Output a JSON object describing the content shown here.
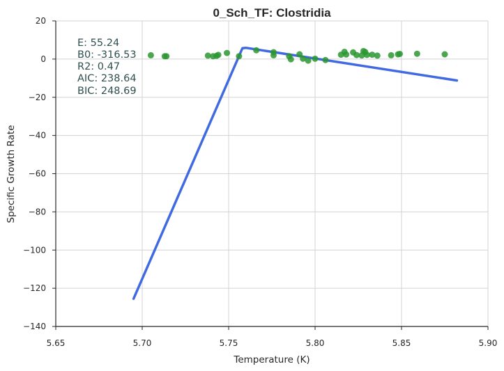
{
  "chart_data": {
    "type": "scatter",
    "title": "0_Sch_TF: Clostridia",
    "xlabel": "Temperature (K)",
    "ylabel": "Specific Growth Rate",
    "xlim": [
      5.65,
      5.9
    ],
    "ylim": [
      -140,
      20
    ],
    "xticks": [
      5.65,
      5.7,
      5.75,
      5.8,
      5.85,
      5.9
    ],
    "xtick_labels": [
      "5.65",
      "5.70",
      "5.75",
      "5.80",
      "5.85",
      "5.90"
    ],
    "yticks": [
      20,
      0,
      -20,
      -40,
      -60,
      -80,
      -100,
      -120,
      -140
    ],
    "ytick_labels": [
      "20",
      "0",
      "−20",
      "−40",
      "−60",
      "−80",
      "−100",
      "−120",
      "−140"
    ],
    "grid": true,
    "colors": {
      "points": "#2a9630",
      "fit": "#4169e1",
      "annotation": "#2f4f4f",
      "axis": "#262626",
      "grid": "#d3d3d3"
    },
    "series": [
      {
        "name": "observed",
        "kind": "scatter",
        "x": [
          5.705,
          5.713,
          5.714,
          5.738,
          5.741,
          5.743,
          5.744,
          5.749,
          5.756,
          5.766,
          5.776,
          5.776,
          5.785,
          5.786,
          5.791,
          5.793,
          5.796,
          5.8,
          5.806,
          5.815,
          5.817,
          5.818,
          5.822,
          5.824,
          5.827,
          5.828,
          5.829,
          5.83,
          5.833,
          5.836,
          5.844,
          5.848,
          5.849,
          5.859,
          5.875
        ],
        "y": [
          2.0,
          1.5,
          1.5,
          1.8,
          1.5,
          1.7,
          2.2,
          3.2,
          1.5,
          4.6,
          3.6,
          2.0,
          1.5,
          -0.1,
          2.5,
          0.2,
          -0.8,
          0.2,
          -0.5,
          2.3,
          3.8,
          2.4,
          3.5,
          2.1,
          1.9,
          4.2,
          3.7,
          2.2,
          2.3,
          1.8,
          2.0,
          2.5,
          2.7,
          2.8,
          2.5
        ]
      },
      {
        "name": "fit",
        "kind": "line",
        "x": [
          5.695,
          5.758,
          5.76,
          5.882
        ],
        "y": [
          -125.5,
          5.7,
          5.9,
          -11.2
        ]
      }
    ],
    "annotations": [
      "E:  55.24",
      "B0:  -316.53",
      "R2:  0.47",
      "AIC: 238.64",
      "BIC: 248.69"
    ]
  }
}
